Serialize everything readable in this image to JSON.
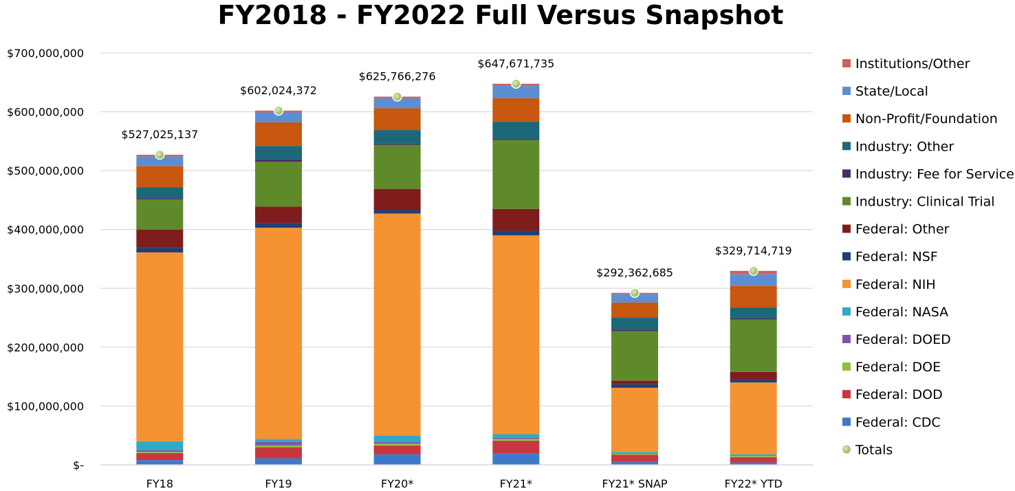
{
  "chart_data": {
    "type": "bar",
    "stacked": true,
    "title": "FY2018 - FY2022 Full Versus Snapshot",
    "xlabel": "",
    "ylabel": "",
    "ylim": [
      0,
      700000000
    ],
    "yticks": [
      {
        "value": 0,
        "label": "$-"
      },
      {
        "value": 100000000,
        "label": "$100,000,000"
      },
      {
        "value": 200000000,
        "label": "$200,000,000"
      },
      {
        "value": 300000000,
        "label": "$300,000,000"
      },
      {
        "value": 400000000,
        "label": "$400,000,000"
      },
      {
        "value": 500000000,
        "label": "$500,000,000"
      },
      {
        "value": 600000000,
        "label": "$600,000,000"
      },
      {
        "value": 700000000,
        "label": "$700,000,000"
      }
    ],
    "grid": true,
    "legend_position": "right",
    "categories": [
      "FY18",
      "FY19",
      "FY20*",
      "FY21*",
      "FY21* SNAP",
      "FY22* YTD"
    ],
    "series": [
      {
        "name": "Federal: CDC",
        "color": "#3E79C9",
        "values": [
          8000000,
          11000000,
          18000000,
          19000000,
          5000000,
          4000000
        ]
      },
      {
        "name": "Federal: DOD",
        "color": "#C8363F",
        "values": [
          12000000,
          19000000,
          15000000,
          22000000,
          12000000,
          9000000
        ]
      },
      {
        "name": "Federal: DOE",
        "color": "#8DBE3E",
        "values": [
          2000000,
          3000000,
          3000000,
          3000000,
          2000000,
          2000000
        ]
      },
      {
        "name": "Federal: DOED",
        "color": "#7E55A8",
        "values": [
          3000000,
          6000000,
          3000000,
          2000000,
          1000000,
          1000000
        ]
      },
      {
        "name": "Federal: NASA",
        "color": "#31A9C9",
        "values": [
          15000000,
          5000000,
          11000000,
          6000000,
          2000000,
          2000000
        ]
      },
      {
        "name": "Federal: NIH",
        "color": "#F59231",
        "values": [
          321000000,
          359000000,
          377000000,
          338000000,
          109000000,
          122000000
        ]
      },
      {
        "name": "Federal: NSF",
        "color": "#203F75",
        "values": [
          8000000,
          8000000,
          6000000,
          8000000,
          6000000,
          5000000
        ]
      },
      {
        "name": "Federal: Other",
        "color": "#7F1D1D",
        "values": [
          31000000,
          28000000,
          36000000,
          37000000,
          6000000,
          13000000
        ]
      },
      {
        "name": "Industry: Clinical Trial",
        "color": "#5E8A2A",
        "values": [
          51000000,
          76000000,
          75000000,
          117000000,
          84000000,
          89000000
        ]
      },
      {
        "name": "Industry: Fee for Service",
        "color": "#4B2C6B",
        "values": [
          2000000,
          4000000,
          2000000,
          2000000,
          2000000,
          2000000
        ]
      },
      {
        "name": "Industry: Other",
        "color": "#1C6778",
        "values": [
          19000000,
          23000000,
          23000000,
          29000000,
          21000000,
          18000000
        ]
      },
      {
        "name": "Non-Profit/Foundation",
        "color": "#C8570F",
        "values": [
          36000000,
          40000000,
          37000000,
          40000000,
          26000000,
          37000000
        ]
      },
      {
        "name": "State/Local",
        "color": "#5B8FD3",
        "values": [
          16000000,
          17000000,
          17000000,
          21000000,
          14000000,
          20000000
        ]
      },
      {
        "name": "Institutions/Other",
        "color": "#D0605F",
        "values": [
          3025137,
          3024372,
          2766276,
          3671735,
          2362685,
          5714719
        ]
      }
    ],
    "totals": {
      "name": "Totals",
      "color": "#9BBB59",
      "values": [
        527025137,
        602024372,
        625766276,
        647671735,
        292362685,
        329714719
      ],
      "labels": [
        "$527,025,137",
        "$602,024,372",
        "$625,766,276",
        "$647,671,735",
        "$292,362,685",
        "$329,714,719"
      ]
    },
    "legend_order": [
      "Institutions/Other",
      "State/Local",
      "Non-Profit/Foundation",
      "Industry: Other",
      "Industry: Fee for Service",
      "Industry: Clinical Trial",
      "Federal: Other",
      "Federal: NSF",
      "Federal: NIH",
      "Federal: NASA",
      "Federal: DOED",
      "Federal: DOE",
      "Federal: DOD",
      "Federal: CDC",
      "Totals"
    ]
  }
}
